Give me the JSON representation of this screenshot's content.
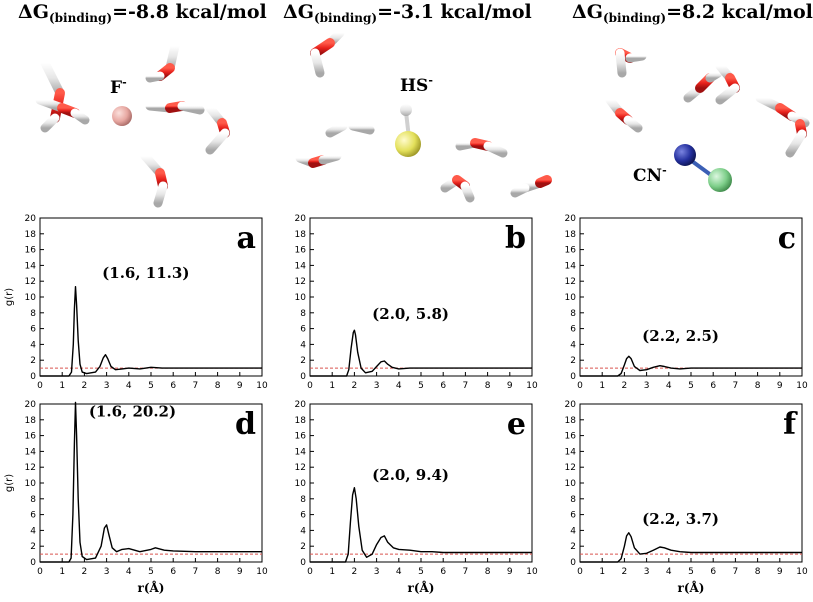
{
  "headers": [
    {
      "prefix": "ΔG",
      "sub": "(binding)",
      "value": "=-8.8 kcal/mol"
    },
    {
      "prefix": "ΔG",
      "sub": "(binding)",
      "value": "=-3.1 kcal/mol"
    },
    {
      "prefix": "ΔG",
      "sub": "(binding)",
      "value": "=8.2 kcal/mol"
    }
  ],
  "ions": [
    {
      "base": "F",
      "charge": "-"
    },
    {
      "base": "HS",
      "charge": "-"
    },
    {
      "base": "CN",
      "charge": "-"
    }
  ],
  "colors": {
    "curve": "#000000",
    "reference": "#d9534f",
    "oxygen": "#e8221c",
    "hydrogen": "#e6e6e6",
    "fluorine": "#e7a7a1",
    "sulfur": "#e3e05a",
    "nitrogen": "#24309e",
    "cn_carbon": "#7ecf8a"
  },
  "chart_data": [
    {
      "type": "line",
      "panel_label": "a",
      "xlabel": "",
      "ylabel": "g(r)",
      "xlim": [
        0,
        10
      ],
      "ylim": [
        0,
        20
      ],
      "xticks": [
        "0",
        "1",
        "2",
        "3",
        "4",
        "5",
        "6",
        "7",
        "8",
        "9",
        "10"
      ],
      "yticks": [
        "0",
        "2",
        "4",
        "6",
        "8",
        "10",
        "12",
        "14",
        "16",
        "18",
        "20"
      ],
      "annotation": "(1.6, 11.3)",
      "reference_line": 1,
      "series": [
        {
          "x": [
            0,
            1.3,
            1.42,
            1.5,
            1.55,
            1.6,
            1.65,
            1.72,
            1.8,
            1.9,
            2.1,
            2.5,
            2.7,
            2.85,
            2.95,
            3.05,
            3.2,
            3.4,
            3.7,
            4.0,
            4.5,
            5.0,
            5.5,
            6.0,
            7.0,
            8.0,
            9.0,
            10.0
          ],
          "y": [
            0,
            0,
            0.5,
            4.0,
            8.5,
            11.3,
            9.0,
            4.5,
            1.5,
            0.5,
            0.3,
            0.5,
            1.2,
            2.3,
            2.7,
            2.2,
            1.2,
            0.8,
            0.9,
            1.0,
            0.9,
            1.1,
            1.0,
            1.0,
            1.0,
            1.0,
            1.0,
            1.0
          ]
        }
      ]
    },
    {
      "type": "line",
      "panel_label": "b",
      "xlabel": "",
      "ylabel": "",
      "xlim": [
        0,
        10
      ],
      "ylim": [
        0,
        20
      ],
      "xticks": [
        "0",
        "1",
        "2",
        "3",
        "4",
        "5",
        "6",
        "7",
        "8",
        "9",
        "10"
      ],
      "yticks": [
        "0",
        "2",
        "4",
        "6",
        "8",
        "10",
        "12",
        "14",
        "16",
        "18",
        "20"
      ],
      "annotation": "(2.0, 5.8)",
      "reference_line": 1,
      "series": [
        {
          "x": [
            0,
            1.65,
            1.75,
            1.85,
            1.95,
            2.0,
            2.05,
            2.15,
            2.3,
            2.5,
            2.8,
            3.0,
            3.2,
            3.35,
            3.5,
            3.7,
            4.0,
            4.5,
            5.0,
            6.0,
            7.0,
            8.0,
            10.0
          ],
          "y": [
            0,
            0,
            0.8,
            3.5,
            5.5,
            5.8,
            5.2,
            3.0,
            1.0,
            0.4,
            0.6,
            1.2,
            1.8,
            1.9,
            1.5,
            1.1,
            0.9,
            1.0,
            1.0,
            1.0,
            1.0,
            1.0,
            1.0
          ]
        }
      ]
    },
    {
      "type": "line",
      "panel_label": "c",
      "xlabel": "",
      "ylabel": "",
      "xlim": [
        0,
        10
      ],
      "ylim": [
        0,
        20
      ],
      "xticks": [
        "0",
        "1",
        "2",
        "3",
        "4",
        "5",
        "6",
        "7",
        "8",
        "9",
        "10"
      ],
      "yticks": [
        "0",
        "2",
        "4",
        "6",
        "8",
        "10",
        "12",
        "14",
        "16",
        "18",
        "20"
      ],
      "annotation": "(2.2, 2.5)",
      "reference_line": 1,
      "series": [
        {
          "x": [
            0,
            1.7,
            1.85,
            2.0,
            2.1,
            2.2,
            2.3,
            2.45,
            2.7,
            3.0,
            3.3,
            3.6,
            3.8,
            4.1,
            4.5,
            5.0,
            6.0,
            7.0,
            8.0,
            10.0
          ],
          "y": [
            0,
            0,
            0.3,
            1.4,
            2.2,
            2.5,
            2.2,
            1.2,
            0.7,
            0.8,
            1.1,
            1.3,
            1.2,
            1.0,
            0.9,
            1.0,
            1.0,
            1.0,
            1.0,
            1.0
          ]
        }
      ]
    },
    {
      "type": "line",
      "panel_label": "d",
      "xlabel": "r(Å)",
      "ylabel": "g(r)",
      "xlim": [
        0,
        10
      ],
      "ylim": [
        0,
        20
      ],
      "xticks": [
        "0",
        "1",
        "2",
        "3",
        "4",
        "5",
        "6",
        "7",
        "8",
        "9",
        "10"
      ],
      "yticks": [
        "0",
        "2",
        "4",
        "6",
        "8",
        "10",
        "12",
        "14",
        "16",
        "18",
        "20"
      ],
      "annotation": "(1.6, 20.2)",
      "reference_line": 1,
      "series": [
        {
          "x": [
            0,
            1.3,
            1.4,
            1.48,
            1.55,
            1.6,
            1.65,
            1.72,
            1.8,
            1.9,
            2.1,
            2.5,
            2.75,
            2.9,
            3.0,
            3.1,
            3.25,
            3.45,
            3.7,
            4.0,
            4.5,
            5.0,
            5.2,
            5.6,
            6.0,
            7.0,
            8.0,
            9.0,
            10.0
          ],
          "y": [
            0,
            0,
            0.5,
            6.0,
            15.0,
            20.2,
            16.0,
            8.0,
            2.5,
            0.7,
            0.3,
            0.5,
            2.0,
            4.3,
            4.7,
            3.5,
            1.8,
            1.3,
            1.6,
            1.7,
            1.3,
            1.6,
            1.8,
            1.5,
            1.4,
            1.3,
            1.3,
            1.3,
            1.3
          ]
        }
      ]
    },
    {
      "type": "line",
      "panel_label": "e",
      "xlabel": "r(Å)",
      "ylabel": "",
      "xlim": [
        0,
        10
      ],
      "ylim": [
        0,
        20
      ],
      "xticks": [
        "0",
        "1",
        "2",
        "3",
        "4",
        "5",
        "6",
        "7",
        "8",
        "9",
        "10"
      ],
      "yticks": [
        "0",
        "2",
        "4",
        "6",
        "8",
        "10",
        "12",
        "14",
        "16",
        "18",
        "20"
      ],
      "annotation": "(2.0, 9.4)",
      "reference_line": 1,
      "series": [
        {
          "x": [
            0,
            1.6,
            1.72,
            1.82,
            1.92,
            2.0,
            2.08,
            2.2,
            2.35,
            2.55,
            2.8,
            3.0,
            3.2,
            3.35,
            3.5,
            3.75,
            4.0,
            4.5,
            5.0,
            5.5,
            6.0,
            7.0,
            8.0,
            10.0
          ],
          "y": [
            0,
            0,
            1.0,
            5.0,
            8.5,
            9.4,
            8.0,
            4.5,
            1.5,
            0.6,
            1.0,
            2.2,
            3.1,
            3.3,
            2.5,
            1.8,
            1.6,
            1.5,
            1.3,
            1.3,
            1.2,
            1.2,
            1.2,
            1.2
          ]
        }
      ]
    },
    {
      "type": "line",
      "panel_label": "f",
      "xlabel": "r(Å)",
      "ylabel": "",
      "xlim": [
        0,
        10
      ],
      "ylim": [
        0,
        20
      ],
      "xticks": [
        "0",
        "1",
        "2",
        "3",
        "4",
        "5",
        "6",
        "7",
        "8",
        "9",
        "10"
      ],
      "yticks": [
        "0",
        "2",
        "4",
        "6",
        "8",
        "10",
        "12",
        "14",
        "16",
        "18",
        "20"
      ],
      "annotation": "(2.2, 3.7)",
      "reference_line": 1,
      "series": [
        {
          "x": [
            0,
            1.7,
            1.85,
            2.0,
            2.1,
            2.2,
            2.3,
            2.45,
            2.7,
            3.0,
            3.3,
            3.6,
            3.8,
            4.1,
            4.5,
            5.0,
            6.0,
            7.0,
            8.0,
            10.0
          ],
          "y": [
            0,
            0,
            0.4,
            2.0,
            3.3,
            3.7,
            3.2,
            1.8,
            1.0,
            1.1,
            1.5,
            1.9,
            1.8,
            1.5,
            1.3,
            1.2,
            1.2,
            1.2,
            1.2,
            1.2
          ]
        }
      ]
    }
  ]
}
